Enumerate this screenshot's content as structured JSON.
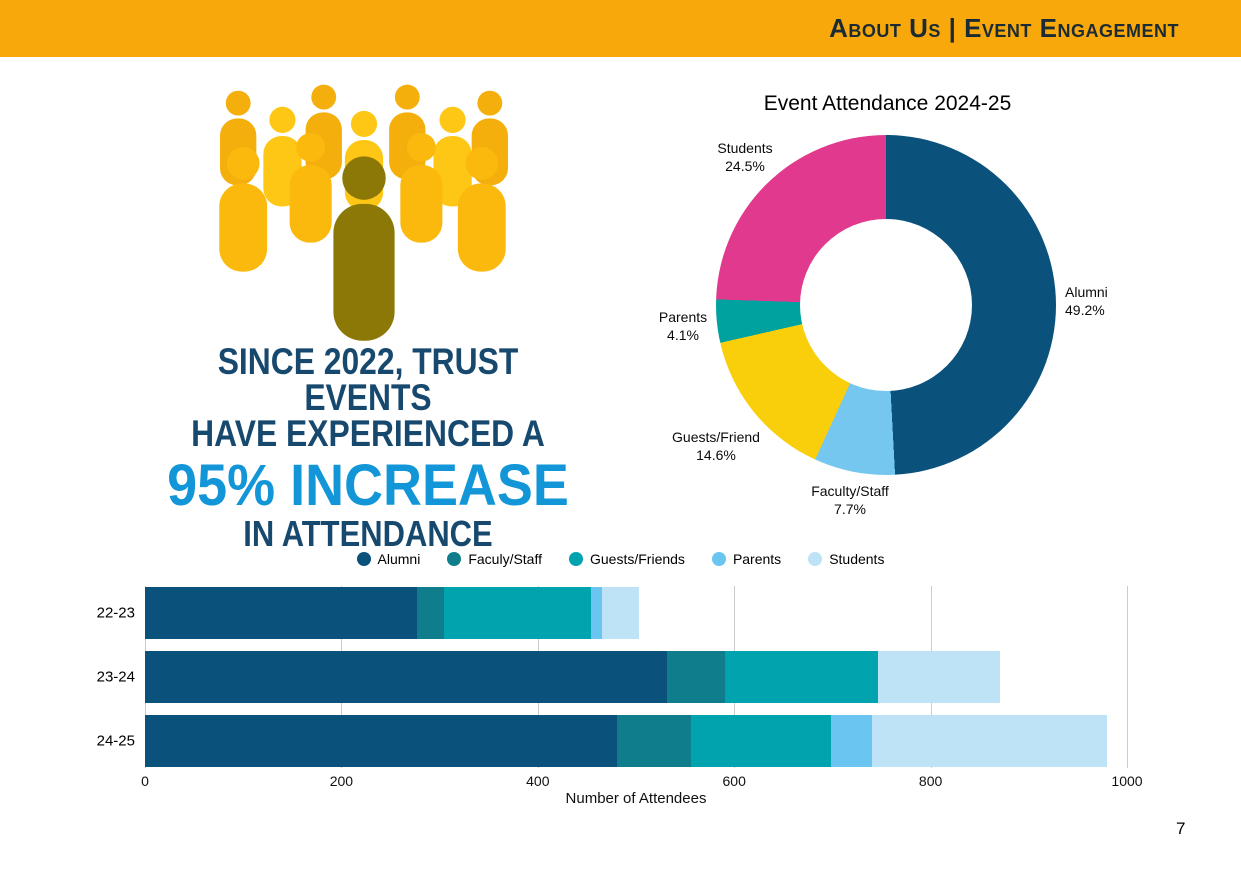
{
  "header": {
    "title": "About Us | Event Engagement"
  },
  "headline": {
    "line1": "SINCE 2022, TRUST EVENTS",
    "line2": "HAVE EXPERIENCED A",
    "highlight": "95% INCREASE",
    "line3": "IN ATTENDANCE"
  },
  "page_number": "7",
  "colors": {
    "header_bg": "#F9A80B",
    "headline_navy": "#17496F",
    "highlight_blue": "#1296D8",
    "crowd_gold": "#FBB90D",
    "crowd_olive": "#8C7807"
  },
  "chart_data": [
    {
      "type": "pie",
      "donut": true,
      "title": "Event Attendance 2024-25",
      "legend_position": "none",
      "slices": [
        {
          "label": "Alumni",
          "pct": 49.2,
          "pct_label": "49.2%",
          "color": "#0A527C"
        },
        {
          "label": "Faculty/Staff",
          "pct": 7.7,
          "pct_label": "7.7%",
          "color": "#76C7F0"
        },
        {
          "label": "Guests/Friend",
          "pct": 14.6,
          "pct_label": "14.6%",
          "color": "#F9CE0B"
        },
        {
          "label": "Parents",
          "pct": 4.1,
          "pct_label": "4.1%",
          "color": "#00A2A0"
        },
        {
          "label": "Students",
          "pct": 24.5,
          "pct_label": "24.5%",
          "color": "#E0398D"
        }
      ]
    },
    {
      "type": "bar",
      "orientation": "horizontal",
      "stacked": true,
      "grid": "vertical",
      "legend_position": "top",
      "categories": [
        "22-23",
        "23-24",
        "24-25"
      ],
      "series": [
        {
          "name": "Alumni",
          "color": "#0A527C",
          "values": [
            277,
            532,
            481
          ]
        },
        {
          "name": "Faculy/Staff",
          "color": "#0F7D8C",
          "values": [
            28,
            59,
            75
          ]
        },
        {
          "name": "Guests/Friends",
          "color": "#00A3AE",
          "values": [
            149,
            155,
            143
          ]
        },
        {
          "name": "Parents",
          "color": "#6AC6F0",
          "values": [
            11,
            0,
            41
          ]
        },
        {
          "name": "Students",
          "color": "#BEE3F6",
          "values": [
            38,
            125,
            240
          ]
        }
      ],
      "xlabel": "Number of Attendees",
      "xlim": [
        0,
        1000
      ],
      "xticks": [
        0,
        200,
        400,
        600,
        800,
        1000
      ]
    }
  ]
}
